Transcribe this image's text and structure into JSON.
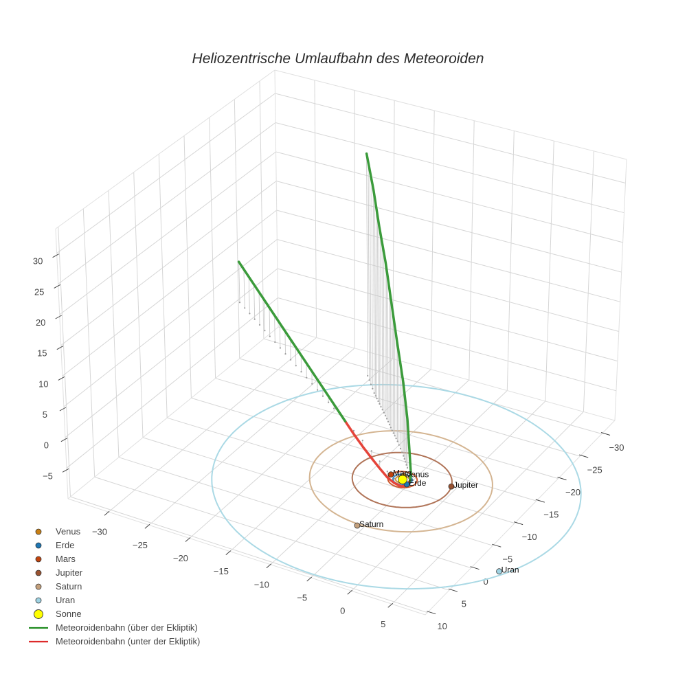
{
  "title": "Heliozentrische Umlaufbahn des Meteoroiden",
  "legend": {
    "items": [
      {
        "label": "Venus",
        "kind": "marker",
        "color": "#c87f14"
      },
      {
        "label": "Erde",
        "kind": "marker",
        "color": "#1f77b4"
      },
      {
        "label": "Mars",
        "kind": "marker",
        "color": "#c1440e"
      },
      {
        "label": "Jupiter",
        "kind": "marker",
        "color": "#9a5230"
      },
      {
        "label": "Saturn",
        "kind": "marker",
        "color": "#c4a07c"
      },
      {
        "label": "Uran",
        "kind": "marker",
        "color": "#9fd3e3"
      },
      {
        "label": "Sonne",
        "kind": "marker",
        "color": "#ffff00"
      },
      {
        "label": "Meteoroidenbahn (über der Ekliptik)",
        "kind": "line",
        "color": "#1e8a1e"
      },
      {
        "label": "Meteoroidenbahn (unter der Ekliptik)",
        "kind": "line",
        "color": "#dd2a2a"
      }
    ]
  },
  "chart_data": {
    "type": "scatter3d",
    "title": "Heliozentrische Umlaufbahn des Meteoroiden",
    "xlabel": "",
    "ylabel": "",
    "zlabel": "",
    "grid": true,
    "legend_position": "bottom-left",
    "axes": {
      "x": {
        "range": [
          -35.0,
          9.1
        ],
        "ticks": [
          -30,
          -25,
          -20,
          -15,
          -10,
          -5,
          0,
          5
        ],
        "tick_labels": [
          "−30",
          "−25",
          "−20",
          "−15",
          "−10",
          "−5",
          "0",
          "5"
        ]
      },
      "y": {
        "range": [
          -33.0,
          10.5
        ],
        "ticks": [
          10,
          5,
          0,
          -5,
          -10,
          -15,
          -20,
          -25,
          -30
        ],
        "tick_labels": [
          "10",
          "5",
          "0",
          "−5",
          "−10",
          "−15",
          "−20",
          "−25",
          "−30"
        ]
      },
      "z": {
        "range": [
          -10.0,
          34.0
        ],
        "ticks": [
          -5,
          0,
          5,
          10,
          15,
          20,
          25,
          30
        ],
        "tick_labels": [
          "−5",
          "0",
          "5",
          "10",
          "15",
          "20",
          "25",
          "30"
        ]
      }
    },
    "sun": {
      "name": "Sonne",
      "x": 0,
      "y": 0,
      "z": 0,
      "color": "#ffff00"
    },
    "planets": [
      {
        "name": "Venus",
        "x": -0.2,
        "y": -0.69,
        "z": 0,
        "orbit_radius": 0.723,
        "color": "#c87f14",
        "orbit_color": "#cf9440"
      },
      {
        "name": "Erde",
        "x": 0.79,
        "y": 0.58,
        "z": 0,
        "orbit_radius": 1.0,
        "color": "#1f77b4",
        "orbit_color": "#3b86c0"
      },
      {
        "name": "Mars",
        "x": -1.48,
        "y": -0.21,
        "z": 0,
        "orbit_radius": 1.524,
        "color": "#c1440e",
        "orbit_color": "#cc5a2e"
      },
      {
        "name": "Jupiter",
        "x": 4.98,
        "y": -1.51,
        "z": 0,
        "orbit_radius": 5.203,
        "color": "#9a5230",
        "orbit_color": "#b07458"
      },
      {
        "name": "Saturn",
        "x": -0.04,
        "y": 9.82,
        "z": 0,
        "orbit_radius": 9.537,
        "color": "#c4a07c",
        "orbit_color": "#d4b592"
      },
      {
        "name": "Uran",
        "x": 15.86,
        "y": 9.74,
        "z": 0,
        "orbit_radius": 19.19,
        "color": "#9fd3e3",
        "orbit_color": "#aad9e5"
      }
    ],
    "meteoroid": {
      "above_ecliptic": {
        "name": "Meteoroidenbahn (über der Ekliptik)",
        "color": "#3b9b3b",
        "segments": [
          [
            [
              -33.0,
              -23.1,
              7.1
            ],
            [
              -27.38,
              -19.05,
              5.33
            ],
            [
              -21.75,
              -15.0,
              3.55
            ],
            [
              -16.13,
              -10.95,
              1.78
            ],
            [
              -10.5,
              -6.9,
              0.0
            ]
          ],
          [
            [
              0.79,
              -0.18,
              0.0
            ],
            [
              0.68,
              -0.57,
              0.8
            ],
            [
              0.14,
              -1.31,
              3.7
            ],
            [
              -0.59,
              -2.25,
              8.0
            ],
            [
              -2.06,
              -4.16,
              12.0
            ],
            [
              -4.0,
              -6.48,
              16.3
            ],
            [
              -5.53,
              -8.13,
              21.0
            ],
            [
              -7.2,
              -10.05,
              25.5
            ],
            [
              -8.97,
              -11.97,
              29.5
            ],
            [
              -10.56,
              -13.7,
              33.8
            ],
            [
              -13.0,
              -16.7,
              37.2
            ]
          ]
        ]
      },
      "below_ecliptic": {
        "name": "Meteoroidenbahn (unter der Ekliptik)",
        "color": "#e5443a",
        "segments": [
          [
            [
              -10.5,
              -6.9,
              0.0
            ],
            [
              -8.82,
              -5.72,
              -0.6
            ],
            [
              -7.1,
              -4.49,
              -1.0
            ],
            [
              -5.33,
              -3.17,
              -1.2
            ],
            [
              -3.66,
              -1.85,
              -1.2
            ],
            [
              -2.07,
              -0.54,
              -1.0
            ],
            [
              -0.81,
              0.32,
              -0.7
            ],
            [
              0.25,
              0.82,
              -0.4
            ],
            [
              0.8,
              0.61,
              -0.2
            ],
            [
              0.79,
              -0.18,
              0.0
            ]
          ]
        ]
      }
    }
  }
}
